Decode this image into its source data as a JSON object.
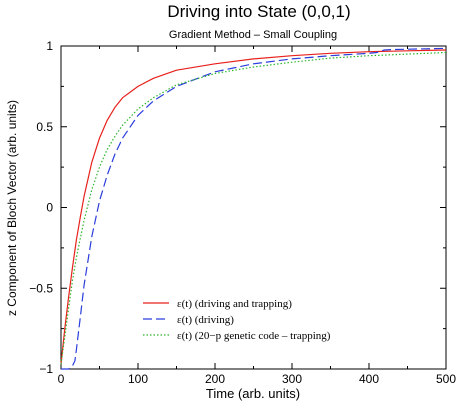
{
  "chart_data": {
    "type": "line",
    "title": "Driving into State (0,0,1)",
    "subtitle": "Gradient Method – Small Coupling",
    "xlabel": "Time (arb. units)",
    "ylabel": "z Component of Bloch Vector (arb. units)",
    "xlim": [
      0,
      500
    ],
    "ylim": [
      -1,
      1
    ],
    "x_ticks": [
      0,
      100,
      200,
      300,
      400,
      500
    ],
    "x_tick_labels": [
      "0",
      "100",
      "200",
      "300",
      "400",
      "500"
    ],
    "y_ticks": [
      -1,
      -0.5,
      0,
      0.5,
      1
    ],
    "y_tick_labels": [
      "−1",
      "−0.5",
      "0",
      "0.5",
      "1"
    ],
    "grid": false,
    "legend_position": "bottom-left",
    "series": [
      {
        "name": "ε(t) (driving and trapping)",
        "color": "#e8211b",
        "dash": "solid",
        "x": [
          0,
          5,
          10,
          15,
          20,
          25,
          30,
          40,
          50,
          60,
          70,
          80,
          100,
          120,
          150,
          200,
          250,
          300,
          350,
          400,
          450,
          500
        ],
        "y": [
          -0.97,
          -0.75,
          -0.55,
          -0.37,
          -0.2,
          -0.06,
          0.07,
          0.28,
          0.43,
          0.54,
          0.62,
          0.68,
          0.75,
          0.8,
          0.85,
          0.89,
          0.92,
          0.94,
          0.955,
          0.965,
          0.97,
          0.975
        ]
      },
      {
        "name": "ε(t) (driving)",
        "color": "#2a3ddc",
        "dash": "dashed",
        "x": [
          0,
          5,
          10,
          15,
          18,
          20,
          25,
          30,
          40,
          50,
          60,
          70,
          80,
          100,
          120,
          150,
          200,
          250,
          300,
          350,
          400,
          410,
          420,
          430,
          450,
          500
        ],
        "y": [
          -1.0,
          -1.0,
          -1.0,
          -0.98,
          -0.95,
          -0.88,
          -0.68,
          -0.48,
          -0.18,
          0.04,
          0.2,
          0.33,
          0.43,
          0.57,
          0.66,
          0.75,
          0.84,
          0.89,
          0.92,
          0.94,
          0.955,
          0.96,
          0.975,
          0.978,
          0.98,
          0.985
        ]
      },
      {
        "name": "ε(t) (20−p genetic code – trapping)",
        "color": "#2bb52b",
        "dash": "dotted",
        "x": [
          0,
          5,
          10,
          15,
          20,
          25,
          30,
          40,
          50,
          60,
          70,
          80,
          100,
          120,
          150,
          200,
          250,
          300,
          350,
          400,
          450,
          500
        ],
        "y": [
          -0.97,
          -0.8,
          -0.62,
          -0.45,
          -0.31,
          -0.19,
          -0.08,
          0.11,
          0.25,
          0.36,
          0.44,
          0.51,
          0.61,
          0.68,
          0.76,
          0.83,
          0.87,
          0.9,
          0.925,
          0.94,
          0.95,
          0.96
        ]
      }
    ]
  }
}
